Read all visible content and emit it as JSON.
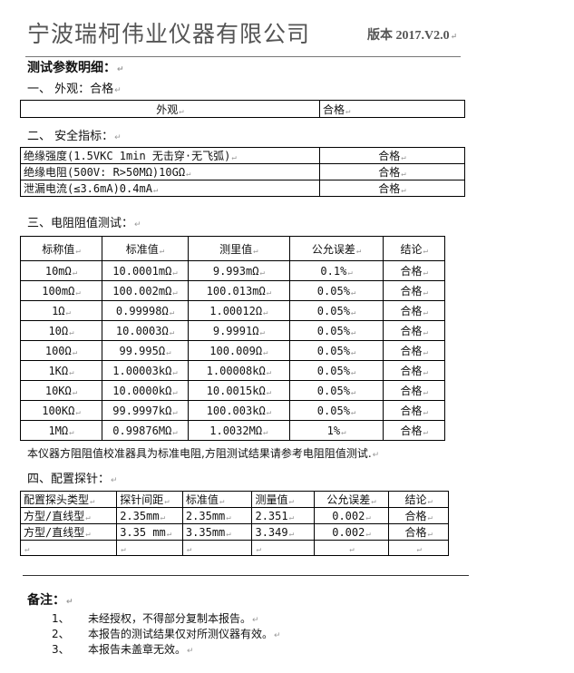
{
  "header": {
    "company": "宁波瑞柯伟业仪器有限公司",
    "version": "版本 2017.V2.0"
  },
  "heading": "测试参数明细：",
  "sec1": {
    "title": "一、  外观：合格",
    "row": [
      "外观",
      "合格"
    ]
  },
  "sec2": {
    "title": "二、  安全指标：",
    "rows": [
      [
        "绝缘强度(1.5VKC 1min 无击穿·无飞弧)",
        "合格"
      ],
      [
        "绝缘电阻(500V: R>50MΩ)10GΩ",
        "合格"
      ],
      [
        "泄漏电流(≤3.6mA)0.4mA",
        "合格"
      ]
    ]
  },
  "sec3": {
    "title": "三、电阻阻值测试：",
    "headers": [
      "标称值",
      "标准值",
      "测里值",
      "公允误差",
      "结论"
    ],
    "rows": [
      [
        "10mΩ",
        "10.0001mΩ",
        "9.993mΩ",
        "0.1%",
        "合格"
      ],
      [
        "100mΩ",
        "100.002mΩ",
        "100.013mΩ",
        "0.05%",
        "合格"
      ],
      [
        "1Ω",
        "0.99998Ω",
        "1.00012Ω",
        "0.05%",
        "合格"
      ],
      [
        "10Ω",
        "10.0003Ω",
        "9.9991Ω",
        "0.05%",
        "合格"
      ],
      [
        "100Ω",
        "99.995Ω",
        "100.009Ω",
        "0.05%",
        "合格"
      ],
      [
        "1KΩ",
        "1.00003kΩ",
        "1.00008kΩ",
        "0.05%",
        "合格"
      ],
      [
        "10KΩ",
        "10.0000kΩ",
        "10.0015kΩ",
        "0.05%",
        "合格"
      ],
      [
        "100KΩ",
        "99.9997kΩ",
        "100.003kΩ",
        "0.05%",
        "合格"
      ],
      [
        "1MΩ",
        "0.99876MΩ",
        "1.0032MΩ",
        "1%",
        "合格"
      ]
    ],
    "note": "本仪器方阻阻值校准器具为标准电阻,方阻测试结果请参考电阻阻值测试."
  },
  "sec4": {
    "title": "四、配置探针：",
    "headers": [
      "配置探头类型",
      "探针间距",
      "标准值",
      "测量值",
      "公允误差",
      "结论"
    ],
    "rows": [
      [
        "方型/直线型",
        "2.35mm",
        "2.35mm",
        "2.351",
        "0.002",
        "合格"
      ],
      [
        "方型/直线型",
        "3.35 mm",
        "3.35mm",
        "3.349",
        "0.002",
        "合格"
      ],
      [
        "",
        "",
        "",
        "",
        "",
        ""
      ]
    ]
  },
  "remarks": {
    "title": "备注：",
    "items": [
      {
        "num": "1、",
        "text": "未经授权，不得部分复制本报告。"
      },
      {
        "num": "2、",
        "text": "本报告的测试结果仅对所测仪器有效。"
      },
      {
        "num": "3、",
        "text": "本报告未盖章无效。"
      }
    ]
  }
}
